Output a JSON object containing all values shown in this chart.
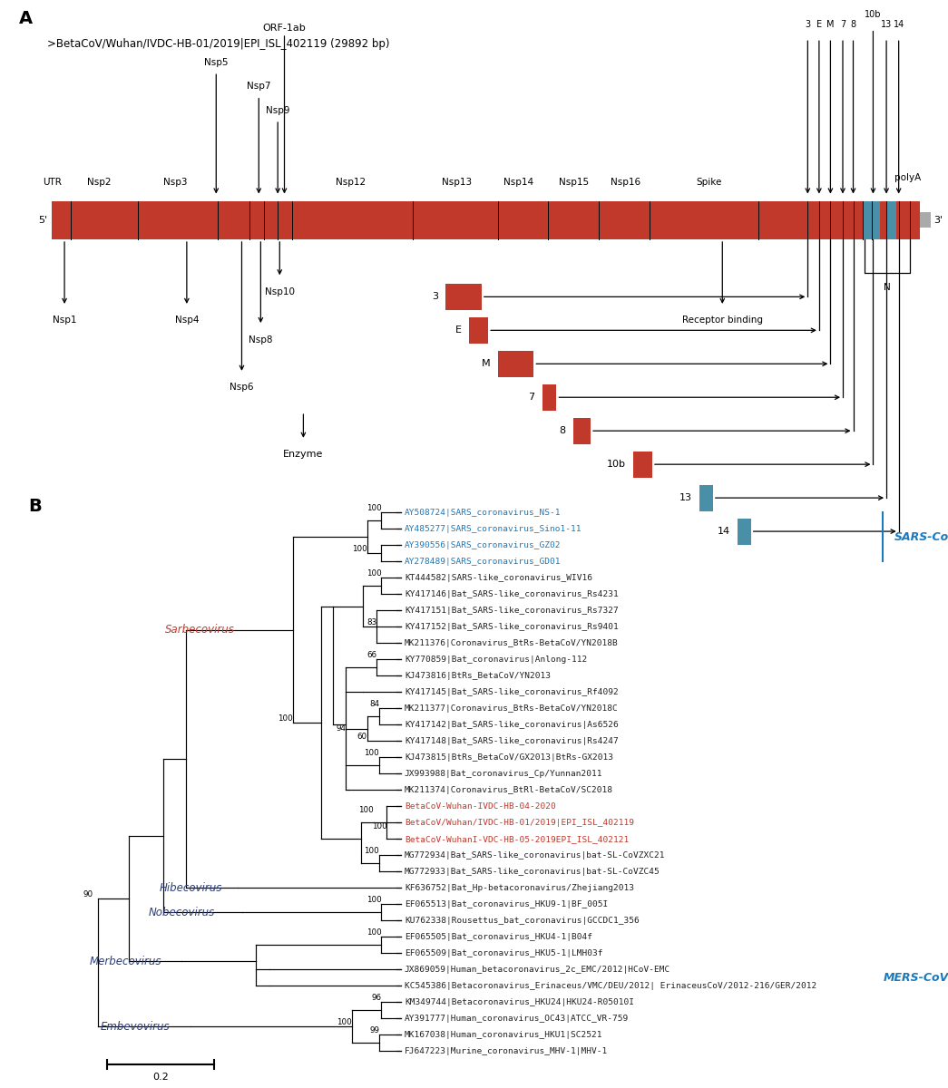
{
  "panel_a_label": "A",
  "panel_b_label": "B",
  "genome_title": ">BetaCoV/Wuhan/IVDC-HB-01/2019|EPI_ISL_402119 (29892 bp)",
  "genome_bar_color": "#c0392b",
  "bg_color": "#ffffff",
  "sars_cov_label": "SARS-CoV",
  "mers_cov_label": "MERS-CoV",
  "scale_bar_label": "0.2",
  "tree_taxa": [
    {
      "name": "AY508724|SARS_coronavirus_NS-1",
      "color": "#1a7abf"
    },
    {
      "name": "AY485277|SARS_coronavirus_Sino1-11",
      "color": "#1a7abf"
    },
    {
      "name": "AY390556|SARS_coronavirus_GZ02",
      "color": "#1a7abf"
    },
    {
      "name": "AY278489|SARS_coronavirus_GD01",
      "color": "#1a7abf"
    },
    {
      "name": "KT444582|SARS-like_coronavirus_WIV16",
      "color": "#222222"
    },
    {
      "name": "KY417146|Bat_SARS-like_coronavirus_Rs4231",
      "color": "#222222"
    },
    {
      "name": "KY417151|Bat_SARS-like_coronavirus_Rs7327",
      "color": "#222222"
    },
    {
      "name": "KY417152|Bat_SARS-like_coronavirus_Rs9401",
      "color": "#222222"
    },
    {
      "name": "MK211376|Coronavirus_BtRs-BetaCoV/YN2018B",
      "color": "#222222"
    },
    {
      "name": "KY770859|Bat_coronavirus|Anlong-112",
      "color": "#222222"
    },
    {
      "name": "KJ473816|BtRs_BetaCoV/YN2013",
      "color": "#222222"
    },
    {
      "name": "KY417145|Bat_SARS-like_coronavirus_Rf4092",
      "color": "#222222"
    },
    {
      "name": "MK211377|Coronavirus_BtRs-BetaCoV/YN2018C",
      "color": "#222222"
    },
    {
      "name": "KY417142|Bat_SARS-like_coronavirus|As6526",
      "color": "#222222"
    },
    {
      "name": "KY417148|Bat_SARS-like_coronavirus|Rs4247",
      "color": "#222222"
    },
    {
      "name": "KJ473815|BtRs_BetaCoV/GX2013|BtRs-GX2013",
      "color": "#222222"
    },
    {
      "name": "JX993988|Bat_coronavirus_Cp/Yunnan2011",
      "color": "#222222"
    },
    {
      "name": "MK211374|Coronavirus_BtRl-BetaCoV/SC2018",
      "color": "#222222"
    },
    {
      "name": "BetaCoV-Wuhan-IVDC-HB-04-2020",
      "color": "#c0392b"
    },
    {
      "name": "BetaCoV/Wuhan/IVDC-HB-01/2019|EPI_ISL_402119",
      "color": "#c0392b"
    },
    {
      "name": "BetaCoV-WuhanI-VDC-HB-05-2019EPI_ISL_402121",
      "color": "#c0392b"
    },
    {
      "name": "MG772934|Bat_SARS-like_coronavirus|bat-SL-CoVZXC21",
      "color": "#222222"
    },
    {
      "name": "MG772933|Bat_SARS-like_coronavirus|bat-SL-CoVZC45",
      "color": "#222222"
    },
    {
      "name": "KF636752|Bat_Hp-betacoronavirus/Zhejiang2013",
      "color": "#222222"
    },
    {
      "name": "EF065513|Bat_coronavirus_HKU9-1|BF_005I",
      "color": "#222222"
    },
    {
      "name": "KU762338|Rousettus_bat_coronavirus|GCCDC1_356",
      "color": "#222222"
    },
    {
      "name": "EF065505|Bat_coronavirus_HKU4-1|B04f",
      "color": "#222222"
    },
    {
      "name": "EF065509|Bat_coronavirus_HKU5-1|LMH03f",
      "color": "#222222"
    },
    {
      "name": "JX869059|Human_betacoronavirus_2c_EMC/2012|HCoV-EMC",
      "color": "#222222"
    },
    {
      "name": "KC545386|Betacoronavirus_Erinaceus/VMC/DEU/2012| ErinaceusCoV/2012-216/GER/2012",
      "color": "#222222"
    },
    {
      "name": "KM349744|Betacoronavirus_HKU24|HKU24-R05010I",
      "color": "#222222"
    },
    {
      "name": "AY391777|Human_coronavirus_OC43|ATCC_VR-759",
      "color": "#222222"
    },
    {
      "name": "MK167038|Human_coronavirus_HKU1|SC2521",
      "color": "#222222"
    },
    {
      "name": "FJ647223|Murine_coronavirus_MHV-1|MHV-1",
      "color": "#222222"
    }
  ]
}
